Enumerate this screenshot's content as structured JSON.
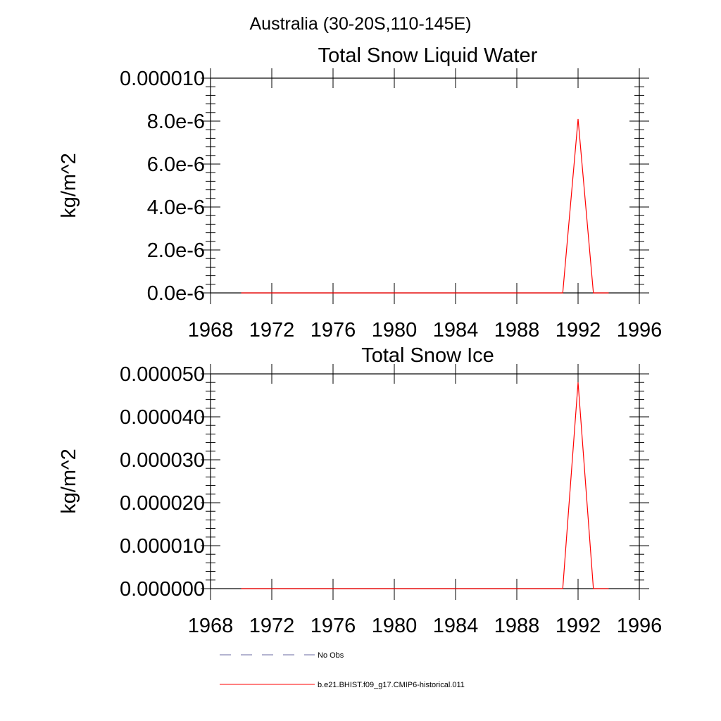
{
  "figure": {
    "region_title": "Australia (30-20S,110-145E)"
  },
  "chart_data": [
    {
      "type": "line",
      "title": "Total Snow Liquid Water",
      "xlabel": "",
      "ylabel": "kg/m^2",
      "xlim": [
        1968,
        1996
      ],
      "ylim": [
        0,
        1e-05
      ],
      "x_ticks": [
        1968,
        1972,
        1976,
        1980,
        1984,
        1988,
        1992,
        1996
      ],
      "x_tick_labels": [
        "1968",
        "1972",
        "1976",
        "1980",
        "1984",
        "1988",
        "1992",
        "1996"
      ],
      "y_ticks": [
        0,
        2e-06,
        4e-06,
        6e-06,
        8e-06,
        1e-05
      ],
      "y_tick_labels": [
        "0.0e-6",
        "2.0e-6",
        "4.0e-6",
        "6.0e-6",
        "8.0e-6",
        "0.000010"
      ],
      "grid": false,
      "series": [
        {
          "name": "b.e21.BHIST.f09_g17.CMIP6-historical.011",
          "color": "#ff0000",
          "x": [
            1970,
            1971,
            1972,
            1973,
            1974,
            1975,
            1976,
            1977,
            1978,
            1979,
            1980,
            1981,
            1982,
            1983,
            1984,
            1985,
            1986,
            1987,
            1988,
            1989,
            1990,
            1991,
            1992,
            1993,
            1994
          ],
          "values": [
            0,
            0,
            0,
            0,
            0,
            0,
            0,
            0,
            0,
            0,
            0,
            0,
            0,
            0,
            0,
            0,
            0,
            0,
            0,
            0,
            0,
            0,
            8.1e-06,
            0,
            0
          ]
        }
      ]
    },
    {
      "type": "line",
      "title": "Total Snow Ice",
      "xlabel": "",
      "ylabel": "kg/m^2",
      "xlim": [
        1968,
        1996
      ],
      "ylim": [
        0,
        5e-05
      ],
      "x_ticks": [
        1968,
        1972,
        1976,
        1980,
        1984,
        1988,
        1992,
        1996
      ],
      "x_tick_labels": [
        "1968",
        "1972",
        "1976",
        "1980",
        "1984",
        "1988",
        "1992",
        "1996"
      ],
      "y_ticks": [
        0,
        1e-05,
        2e-05,
        3e-05,
        4e-05,
        5e-05
      ],
      "y_tick_labels": [
        "0.000000",
        "0.000010",
        "0.000020",
        "0.000030",
        "0.000040",
        "0.000050"
      ],
      "grid": false,
      "series": [
        {
          "name": "b.e21.BHIST.f09_g17.CMIP6-historical.011",
          "color": "#ff0000",
          "x": [
            1970,
            1971,
            1972,
            1973,
            1974,
            1975,
            1976,
            1977,
            1978,
            1979,
            1980,
            1981,
            1982,
            1983,
            1984,
            1985,
            1986,
            1987,
            1988,
            1989,
            1990,
            1991,
            1992,
            1993,
            1994
          ],
          "values": [
            0,
            0,
            0,
            0,
            0,
            0,
            0,
            0,
            0,
            0,
            0,
            0,
            0,
            0,
            0,
            0,
            0,
            0,
            0,
            0,
            0,
            0,
            4.8e-05,
            0,
            0
          ]
        }
      ]
    }
  ],
  "legend": {
    "placement": "bottom",
    "items": [
      {
        "label": "No Obs",
        "color": "#6a6aa0",
        "style": "dashed"
      },
      {
        "label": "b.e21.BHIST.f09_g17.CMIP6-historical.011",
        "color": "#ff0000",
        "style": "solid"
      }
    ]
  }
}
